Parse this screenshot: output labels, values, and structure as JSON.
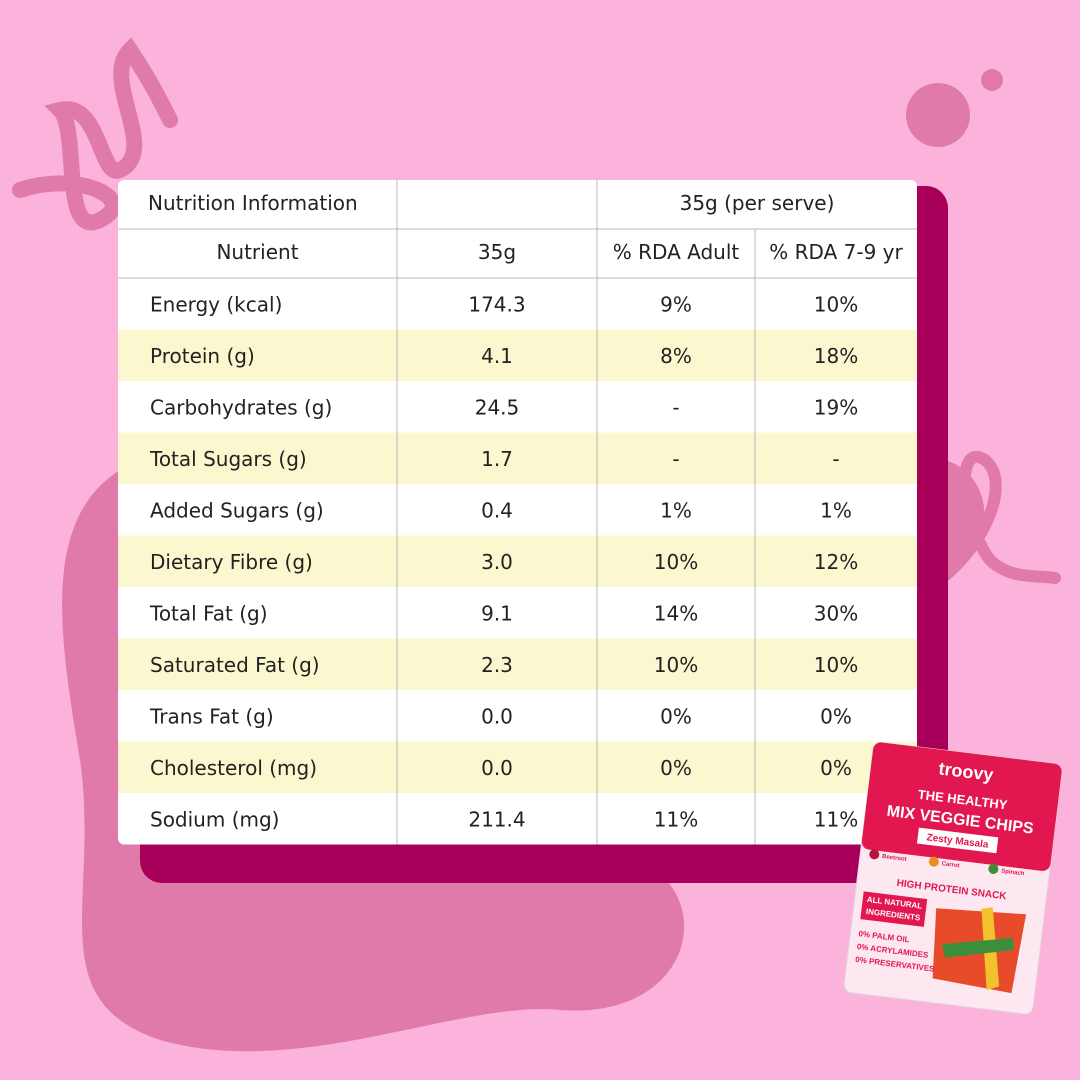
{
  "table": {
    "header": [
      [
        "Nutrition Information",
        "35g (per serve)"
      ],
      [
        "Nutrient",
        "35g",
        "% RDA Adult",
        "% RDA 7-9 yr"
      ]
    ],
    "rows": [
      [
        "Energy (kcal)",
        "174.3",
        "9%",
        "10%"
      ],
      [
        "Protein (g)",
        "4.1",
        "8%",
        "18%"
      ],
      [
        "Carbohydrates (g)",
        "24.5",
        "-",
        "19%"
      ],
      [
        "Total Sugars (g)",
        "1.7",
        "-",
        "-"
      ],
      [
        "Added Sugars (g)",
        "0.4",
        "1%",
        "1%"
      ],
      [
        "Dietary Fibre (g)",
        "3.0",
        "10%",
        "12%"
      ],
      [
        "Total Fat (g)",
        "9.1",
        "14%",
        "30%"
      ],
      [
        "Saturated Fat (g)",
        "2.3",
        "10%",
        "10%"
      ],
      [
        "Trans Fat (g)",
        "0.0",
        "0%",
        "0%"
      ],
      [
        "Cholesterol (mg)",
        "0.0",
        "0%",
        "0%"
      ],
      [
        "Sodium (mg)",
        "211.4",
        "11%",
        "11%"
      ]
    ]
  },
  "package": {
    "brand": "troovy",
    "line1": "THE HEALTHY",
    "line2": "MIX VEGGIE CHIPS",
    "flavour": "Zesty Masala",
    "veggies": [
      "Beetroot",
      "Carrot",
      "Spinach"
    ],
    "tagline": "HIGH PROTEIN SNACK",
    "badge": [
      "ALL NATURAL",
      "INGREDIENTS"
    ],
    "claims": [
      "0% PALM OIL",
      "0% ACRYLAMIDES",
      "0% PRESERVATIVES"
    ]
  }
}
